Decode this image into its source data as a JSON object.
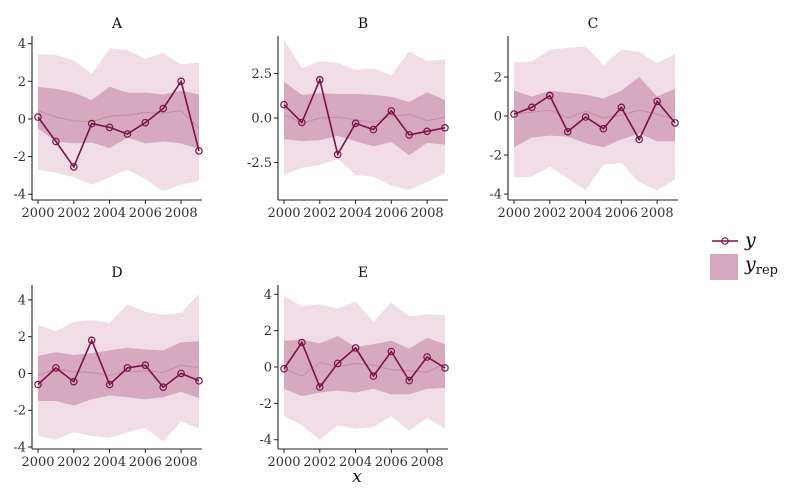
{
  "chart_data": {
    "type": "line",
    "xlabel": "x",
    "x": [
      2000,
      2001,
      2002,
      2003,
      2004,
      2005,
      2006,
      2007,
      2008,
      2009
    ],
    "x_ticks": [
      2000,
      2002,
      2004,
      2006,
      2008
    ],
    "x_tick_labels": [
      "2000",
      "2002",
      "2004",
      "2006",
      "2008"
    ],
    "legend": {
      "position": "right",
      "entries": [
        {
          "key": "y",
          "label": "y",
          "subscript": ""
        },
        {
          "key": "y_rep",
          "label": "y",
          "subscript": "rep"
        }
      ]
    },
    "colors": {
      "line": "#7b1149",
      "outer_band": "#f0dde6",
      "inner_band": "#d6a9bf",
      "median": "#c98aa8"
    },
    "panels": [
      {
        "title": "A",
        "ylim": [
          -4.2,
          4.3
        ],
        "yticks": [
          -4,
          -2,
          0,
          2,
          4
        ],
        "ytick_labels": [
          "-4",
          "-2",
          "0",
          "2",
          "4"
        ],
        "y": [
          0.1,
          -1.2,
          -2.55,
          -0.25,
          -0.45,
          -0.8,
          -0.2,
          0.55,
          2.0,
          -1.7
        ],
        "rep_median": [
          0.45,
          0.1,
          -0.1,
          -0.15,
          0.15,
          0.2,
          0.35,
          0.3,
          0.45,
          -0.5
        ],
        "rep_inner_low": [
          -0.5,
          -1.2,
          -1.3,
          -1.25,
          -1.55,
          -1.0,
          -1.3,
          -1.2,
          -1.3,
          -1.6
        ],
        "rep_inner_high": [
          1.7,
          1.6,
          1.4,
          1.0,
          1.7,
          1.4,
          1.4,
          1.3,
          1.5,
          1.3
        ],
        "rep_outer_low": [
          -2.7,
          -2.85,
          -3.1,
          -3.5,
          -3.1,
          -2.7,
          -3.2,
          -3.85,
          -3.5,
          -3.3
        ],
        "rep_outer_high": [
          3.45,
          3.4,
          3.1,
          2.4,
          3.75,
          3.65,
          3.2,
          3.5,
          2.9,
          3.0
        ]
      },
      {
        "title": "B",
        "ylim": [
          -4.5,
          4.5
        ],
        "yticks": [
          -2.5,
          0,
          2.5
        ],
        "ytick_labels": [
          "-2.5",
          "0.0",
          "2.5"
        ],
        "y": [
          0.75,
          -0.25,
          2.15,
          -2.05,
          -0.3,
          -0.65,
          0.4,
          -0.95,
          -0.75,
          -0.55
        ],
        "rep_median": [
          0.2,
          -0.3,
          0.0,
          0.05,
          -0.1,
          -0.25,
          0.1,
          0.2,
          -0.15,
          0.05
        ],
        "rep_inner_low": [
          -1.2,
          -1.3,
          -1.25,
          -1.0,
          -1.3,
          -1.6,
          -1.35,
          -2.1,
          -1.4,
          -1.5
        ],
        "rep_inner_high": [
          2.05,
          1.3,
          1.4,
          1.35,
          1.35,
          1.3,
          1.2,
          0.9,
          1.45,
          1.0
        ],
        "rep_outer_low": [
          -3.2,
          -2.8,
          -2.65,
          -2.3,
          -3.2,
          -3.3,
          -3.8,
          -4.05,
          -3.6,
          -3.1
        ],
        "rep_outer_high": [
          4.4,
          2.8,
          3.2,
          3.1,
          2.7,
          2.8,
          2.4,
          3.75,
          3.2,
          3.3
        ]
      },
      {
        "title": "C",
        "ylim": [
          -4.2,
          4.0
        ],
        "yticks": [
          -4,
          -2,
          0,
          2
        ],
        "ytick_labels": [
          "-4",
          "-2",
          "0",
          "2"
        ],
        "y": [
          0.1,
          0.45,
          1.05,
          -0.8,
          -0.05,
          -0.65,
          0.45,
          -1.2,
          0.75,
          -0.35
        ],
        "rep_median": [
          0.1,
          0.2,
          0.3,
          -0.1,
          0.25,
          -0.1,
          0.05,
          0.3,
          0.1,
          -0.2
        ],
        "rep_inner_low": [
          -1.6,
          -1.1,
          -1.0,
          -1.05,
          -1.4,
          -1.6,
          -1.2,
          -0.9,
          -1.3,
          -1.3
        ],
        "rep_inner_high": [
          1.3,
          1.0,
          1.3,
          1.2,
          1.1,
          0.9,
          1.3,
          2.0,
          1.0,
          1.4
        ],
        "rep_outer_low": [
          -3.15,
          -3.1,
          -2.6,
          -3.2,
          -3.8,
          -2.5,
          -2.4,
          -3.4,
          -3.8,
          -3.25
        ],
        "rep_outer_high": [
          2.75,
          2.8,
          3.4,
          3.5,
          3.55,
          2.6,
          3.4,
          3.3,
          2.7,
          3.2
        ]
      },
      {
        "title": "D",
        "ylim": [
          -4.0,
          4.7
        ],
        "yticks": [
          -4,
          -2,
          0,
          2,
          4
        ],
        "ytick_labels": [
          "-4",
          "-2",
          "0",
          "2",
          "4"
        ],
        "y": [
          -0.6,
          0.3,
          -0.45,
          1.8,
          -0.6,
          0.3,
          0.45,
          -0.75,
          0.0,
          -0.4
        ],
        "rep_median": [
          -0.1,
          0.25,
          0.1,
          0.05,
          -0.1,
          0.1,
          0.15,
          0.05,
          0.45,
          0.3
        ],
        "rep_inner_low": [
          -1.5,
          -1.5,
          -1.75,
          -1.4,
          -1.2,
          -1.3,
          -1.4,
          -1.3,
          -1.0,
          -1.35
        ],
        "rep_inner_high": [
          0.95,
          1.15,
          1.0,
          1.1,
          1.25,
          1.4,
          1.3,
          1.25,
          1.7,
          1.75
        ],
        "rep_outer_low": [
          -3.4,
          -3.6,
          -3.2,
          -3.4,
          -3.5,
          -3.2,
          -2.95,
          -3.7,
          -2.6,
          -3.0
        ],
        "rep_outer_high": [
          2.65,
          2.3,
          2.8,
          2.9,
          2.75,
          3.75,
          3.35,
          3.2,
          3.3,
          4.3
        ]
      },
      {
        "title": "E",
        "ylim": [
          -4.4,
          4.4
        ],
        "yticks": [
          -4,
          -2,
          0,
          2,
          4
        ],
        "ytick_labels": [
          "-4",
          "-2",
          "0",
          "2",
          "4"
        ],
        "y": [
          -0.1,
          1.35,
          -1.1,
          0.2,
          1.05,
          -0.5,
          0.85,
          -0.75,
          0.55,
          -0.05
        ],
        "rep_median": [
          -0.1,
          -0.5,
          0.25,
          0.0,
          0.2,
          0.1,
          -0.15,
          -0.2,
          -0.3,
          0.2
        ],
        "rep_inner_low": [
          -1.2,
          -1.6,
          -1.4,
          -1.3,
          -1.4,
          -1.2,
          -1.5,
          -1.5,
          -1.2,
          -1.15
        ],
        "rep_inner_high": [
          1.45,
          1.5,
          1.3,
          1.7,
          1.1,
          1.25,
          1.45,
          1.0,
          1.6,
          1.25
        ],
        "rep_outer_low": [
          -2.7,
          -3.2,
          -4.0,
          -3.2,
          -3.4,
          -3.3,
          -2.7,
          -3.5,
          -2.8,
          -3.4
        ],
        "rep_outer_high": [
          3.9,
          3.35,
          3.45,
          3.2,
          3.6,
          2.5,
          3.55,
          2.8,
          2.9,
          2.85
        ]
      }
    ]
  }
}
